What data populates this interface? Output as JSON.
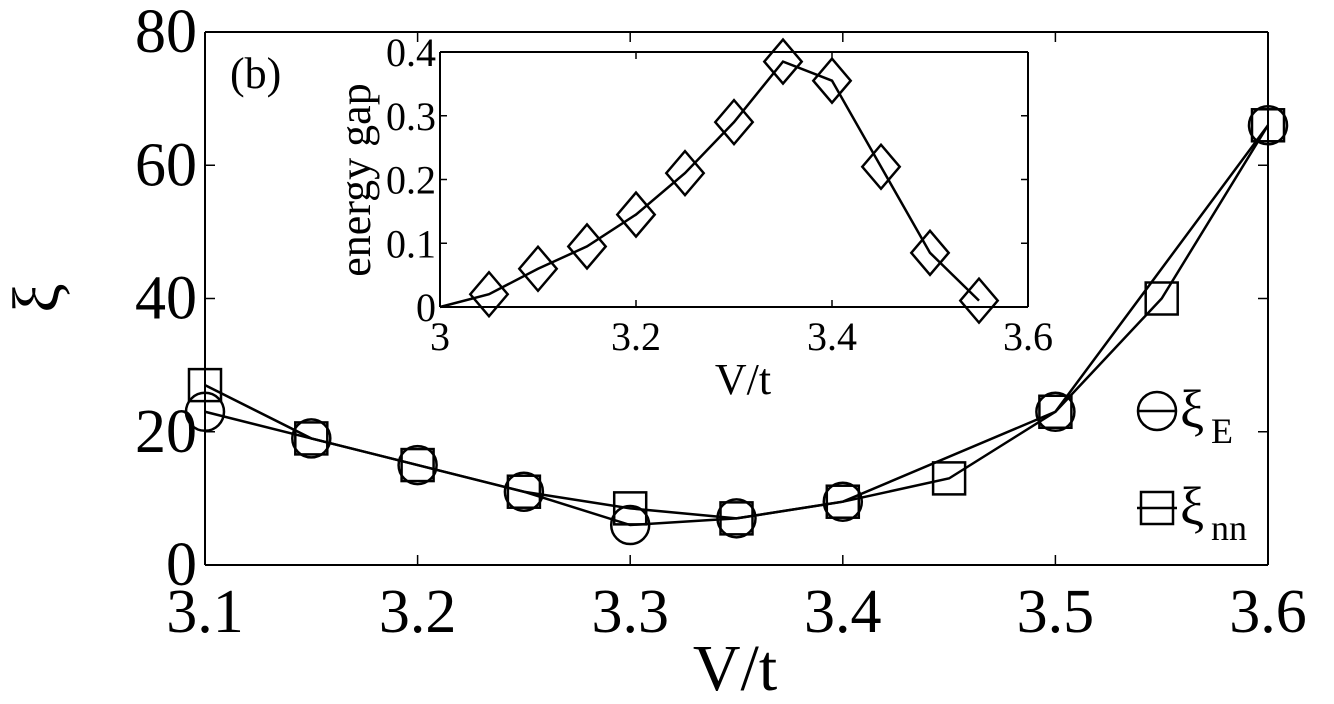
{
  "chart_data": [
    {
      "type": "line",
      "panel_label": "(b)",
      "xlabel": "V/t",
      "ylabel": "ξ",
      "xlim": [
        3.1,
        3.6
      ],
      "ylim": [
        0,
        80
      ],
      "xticks": [
        "3.1",
        "3.2",
        "3.3",
        "3.4",
        "3.5",
        "3.6"
      ],
      "yticks": [
        "0",
        "20",
        "40",
        "60",
        "80"
      ],
      "grid": false,
      "legend_position": "right",
      "series": [
        {
          "name": "ξ",
          "subscript": "E",
          "marker": "circle",
          "x": [
            3.1,
            3.15,
            3.2,
            3.25,
            3.3,
            3.35,
            3.4,
            3.5,
            3.6
          ],
          "y": [
            23,
            19,
            15,
            11,
            6,
            7,
            9.5,
            23,
            66
          ]
        },
        {
          "name": "ξ",
          "subscript": "nn",
          "marker": "square",
          "x": [
            3.1,
            3.15,
            3.2,
            3.25,
            3.3,
            3.35,
            3.4,
            3.45,
            3.5,
            3.55,
            3.6
          ],
          "y": [
            27,
            19,
            15,
            11,
            8.5,
            7,
            9.5,
            13,
            23,
            40,
            66
          ]
        }
      ]
    },
    {
      "type": "line",
      "inset": true,
      "xlabel": "V/t",
      "ylabel": "energy gap",
      "xlim": [
        3.0,
        3.6
      ],
      "ylim": [
        0,
        0.4
      ],
      "xticks": [
        "3",
        "3.2",
        "3.4",
        "3.6"
      ],
      "yticks": [
        "0",
        "0.1",
        "0.2",
        "0.3",
        "0.4"
      ],
      "grid": false,
      "series": [
        {
          "marker": "diamond",
          "x": [
            3.0,
            3.05,
            3.1,
            3.15,
            3.2,
            3.25,
            3.3,
            3.35,
            3.4,
            3.45,
            3.5,
            3.55
          ],
          "y": [
            0.0,
            0.02,
            0.06,
            0.095,
            0.145,
            0.21,
            0.29,
            0.385,
            0.355,
            0.22,
            0.085,
            0.01
          ],
          "marker_from_index": 1
        }
      ]
    }
  ]
}
